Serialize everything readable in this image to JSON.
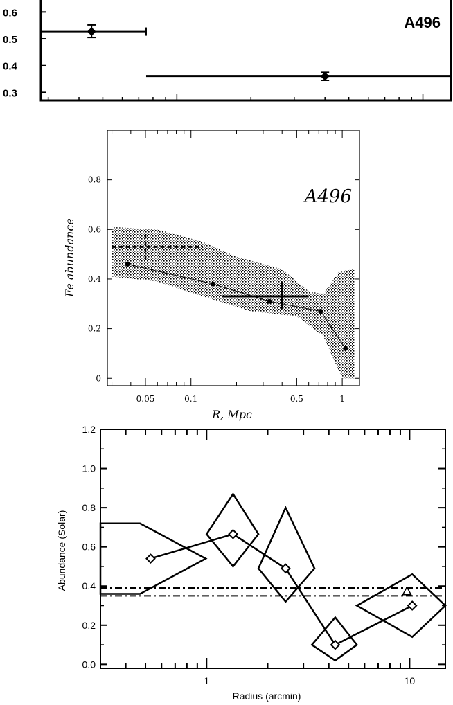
{
  "chart_data": [
    {
      "type": "scatter",
      "title": "A496",
      "xlabel": "",
      "ylabel": "",
      "yticks": [
        "0.6",
        "0.5",
        "0.4",
        "0.3"
      ],
      "ylim": [
        0.27,
        0.65
      ],
      "xscale": "log",
      "xlim": [
        0.028,
        1.3
      ],
      "points": [
        {
          "x": 0.045,
          "y": 0.527,
          "xerr": [
            0.028,
            0.075
          ],
          "yerr": [
            0.505,
            0.552
          ]
        },
        {
          "x": 0.4,
          "y": 0.36,
          "xerr": [
            0.075,
            1.3
          ],
          "yerr": [
            0.345,
            0.375
          ]
        }
      ]
    },
    {
      "type": "line",
      "title": "A496",
      "xlabel": "R, Mpc",
      "ylabel": "Fe abundance",
      "xscale": "log",
      "xlim": [
        0.028,
        1.3
      ],
      "ylim": [
        -0.03,
        1.0
      ],
      "xticks": [
        {
          "v": 0.05,
          "label": "0.05"
        },
        {
          "v": 0.1,
          "label": "0.1"
        },
        {
          "v": 0.5,
          "label": "0.5"
        },
        {
          "v": 1,
          "label": "1"
        }
      ],
      "yticks": [
        {
          "v": 0,
          "label": "0"
        },
        {
          "v": 0.2,
          "label": "0.2"
        },
        {
          "v": 0.4,
          "label": "0.4"
        },
        {
          "v": 0.6,
          "label": "0.6"
        },
        {
          "v": 0.8,
          "label": "0.8"
        }
      ],
      "series_profile": [
        {
          "x": 0.038,
          "y": 0.46
        },
        {
          "x": 0.14,
          "y": 0.38
        },
        {
          "x": 0.33,
          "y": 0.31
        },
        {
          "x": 0.72,
          "y": 0.27
        },
        {
          "x": 1.05,
          "y": 0.12
        }
      ],
      "dashed_point": {
        "x": 0.05,
        "y": 0.53,
        "xerr": [
          0.03,
          0.12
        ],
        "yerr": [
          0.48,
          0.58
        ]
      },
      "solid_point": {
        "x": 0.4,
        "y": 0.33,
        "xerr": [
          0.16,
          0.6
        ],
        "yerr": [
          0.28,
          0.39
        ]
      },
      "band_upper": [
        {
          "x": 0.03,
          "y": 0.61
        },
        {
          "x": 0.06,
          "y": 0.6
        },
        {
          "x": 0.12,
          "y": 0.55
        },
        {
          "x": 0.2,
          "y": 0.49
        },
        {
          "x": 0.4,
          "y": 0.44
        },
        {
          "x": 0.6,
          "y": 0.35
        },
        {
          "x": 0.75,
          "y": 0.34
        },
        {
          "x": 0.95,
          "y": 0.43
        },
        {
          "x": 1.2,
          "y": 0.44
        }
      ],
      "band_lower": [
        {
          "x": 1.2,
          "y": 0.0
        },
        {
          "x": 1.0,
          "y": 0.0
        },
        {
          "x": 0.75,
          "y": 0.17
        },
        {
          "x": 0.5,
          "y": 0.25
        },
        {
          "x": 0.25,
          "y": 0.27
        },
        {
          "x": 0.12,
          "y": 0.33
        },
        {
          "x": 0.06,
          "y": 0.39
        },
        {
          "x": 0.03,
          "y": 0.41
        }
      ]
    },
    {
      "type": "line",
      "title": "",
      "xlabel": "Radius (arcmin)",
      "ylabel": "Abundance (Solar)",
      "xscale": "log",
      "xlim": [
        0.3,
        15
      ],
      "ylim": [
        -0.02,
        1.2
      ],
      "xticks": [
        {
          "v": 1,
          "label": "1"
        },
        {
          "v": 10,
          "label": "10"
        }
      ],
      "yticks": [
        {
          "v": 0,
          "label": "0.0"
        },
        {
          "v": 0.2,
          "label": "0.2"
        },
        {
          "v": 0.4,
          "label": "0.4"
        },
        {
          "v": 0.6,
          "label": "0.6"
        },
        {
          "v": 0.8,
          "label": "0.8"
        },
        {
          "v": 1.0,
          "label": "1.0"
        },
        {
          "v": 1.2,
          "label": "1.2"
        }
      ],
      "points": [
        {
          "x": 0.53,
          "y": 0.54,
          "xerr": [
            0.3,
            0.99
          ],
          "yerr": [
            0.36,
            0.72
          ]
        },
        {
          "x": 1.35,
          "y": 0.665,
          "xerr": [
            1.0,
            1.8
          ],
          "yerr": [
            0.5,
            0.87
          ]
        },
        {
          "x": 2.45,
          "y": 0.49,
          "xerr": [
            1.8,
            3.4
          ],
          "yerr": [
            0.32,
            0.8
          ]
        },
        {
          "x": 4.3,
          "y": 0.1,
          "xerr": [
            3.3,
            5.5
          ],
          "yerr": [
            0.02,
            0.24
          ]
        },
        {
          "x": 10.3,
          "y": 0.3,
          "xerr": [
            5.5,
            15
          ],
          "yerr": [
            0.14,
            0.46
          ]
        }
      ],
      "reference_lines": [
        0.39,
        0.35
      ],
      "triangle_point": {
        "x": 9.7,
        "y": 0.37
      }
    }
  ]
}
